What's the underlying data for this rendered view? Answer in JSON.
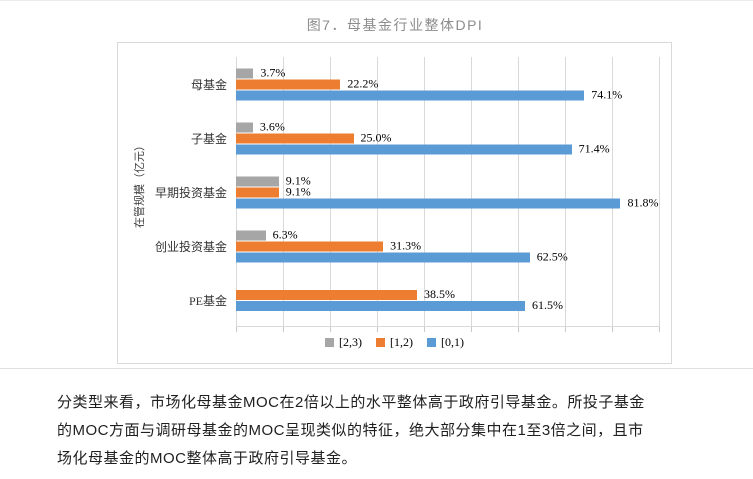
{
  "figure": {
    "title": "图7．母基金行业整体DPI"
  },
  "chart_data": {
    "type": "bar",
    "orientation": "horizontal",
    "title": "图7．母基金行业整体DPI",
    "ylabel": "在管规模（亿元）",
    "xlabel": "",
    "categories": [
      "母基金",
      "子基金",
      "早期投资基金",
      "创业投资基金",
      "PE基金"
    ],
    "series": [
      {
        "name": "[2,3)",
        "color": "#A6A6A6",
        "values": [
          3.7,
          3.6,
          9.1,
          6.3,
          null
        ],
        "labels": [
          "3.7%",
          "3.6%",
          "9.1%",
          "6.3%",
          ""
        ]
      },
      {
        "name": "[1,2)",
        "color": "#ED7D31",
        "values": [
          22.2,
          25.0,
          9.1,
          31.3,
          38.5
        ],
        "labels": [
          "22.2%",
          "25.0%",
          "9.1%",
          "31.3%",
          "38.5%"
        ]
      },
      {
        "name": "[0,1)",
        "color": "#5B9BD5",
        "values": [
          74.1,
          71.4,
          81.8,
          62.5,
          61.5
        ],
        "labels": [
          "74.1%",
          "71.4%",
          "81.8%",
          "62.5%",
          "61.5%"
        ]
      }
    ],
    "xlim": [
      0,
      90
    ],
    "gridline_interval": 10,
    "grid": true,
    "x_tick_labels_visible": false,
    "legend_position": "bottom",
    "value_suffix": "%"
  },
  "legend": {
    "items": [
      {
        "label": "[2,3)",
        "color": "#A6A6A6"
      },
      {
        "label": "[1,2)",
        "color": "#ED7D31"
      },
      {
        "label": "[0,1)",
        "color": "#5B9BD5"
      }
    ]
  },
  "paragraph": {
    "lines": [
      "分类型来看，市场化母基金MOC在2倍以上的水平整体高于政府引导基金。所投子基金",
      "的MOC方面与调研母基金的MOC呈现类似的特征，绝大部分集中在1至3倍之间，且市",
      "场化母基金的MOC整体高于政府引导基金。"
    ]
  },
  "colors": {
    "gridline": "#d9d9d9",
    "chart_border": "#d9d9d9",
    "title_text": "#8c8c8c",
    "body_text": "#1f1f1f",
    "bar_gray": "#A6A6A6",
    "bar_orange": "#ED7D31",
    "bar_blue": "#5B9BD5"
  }
}
